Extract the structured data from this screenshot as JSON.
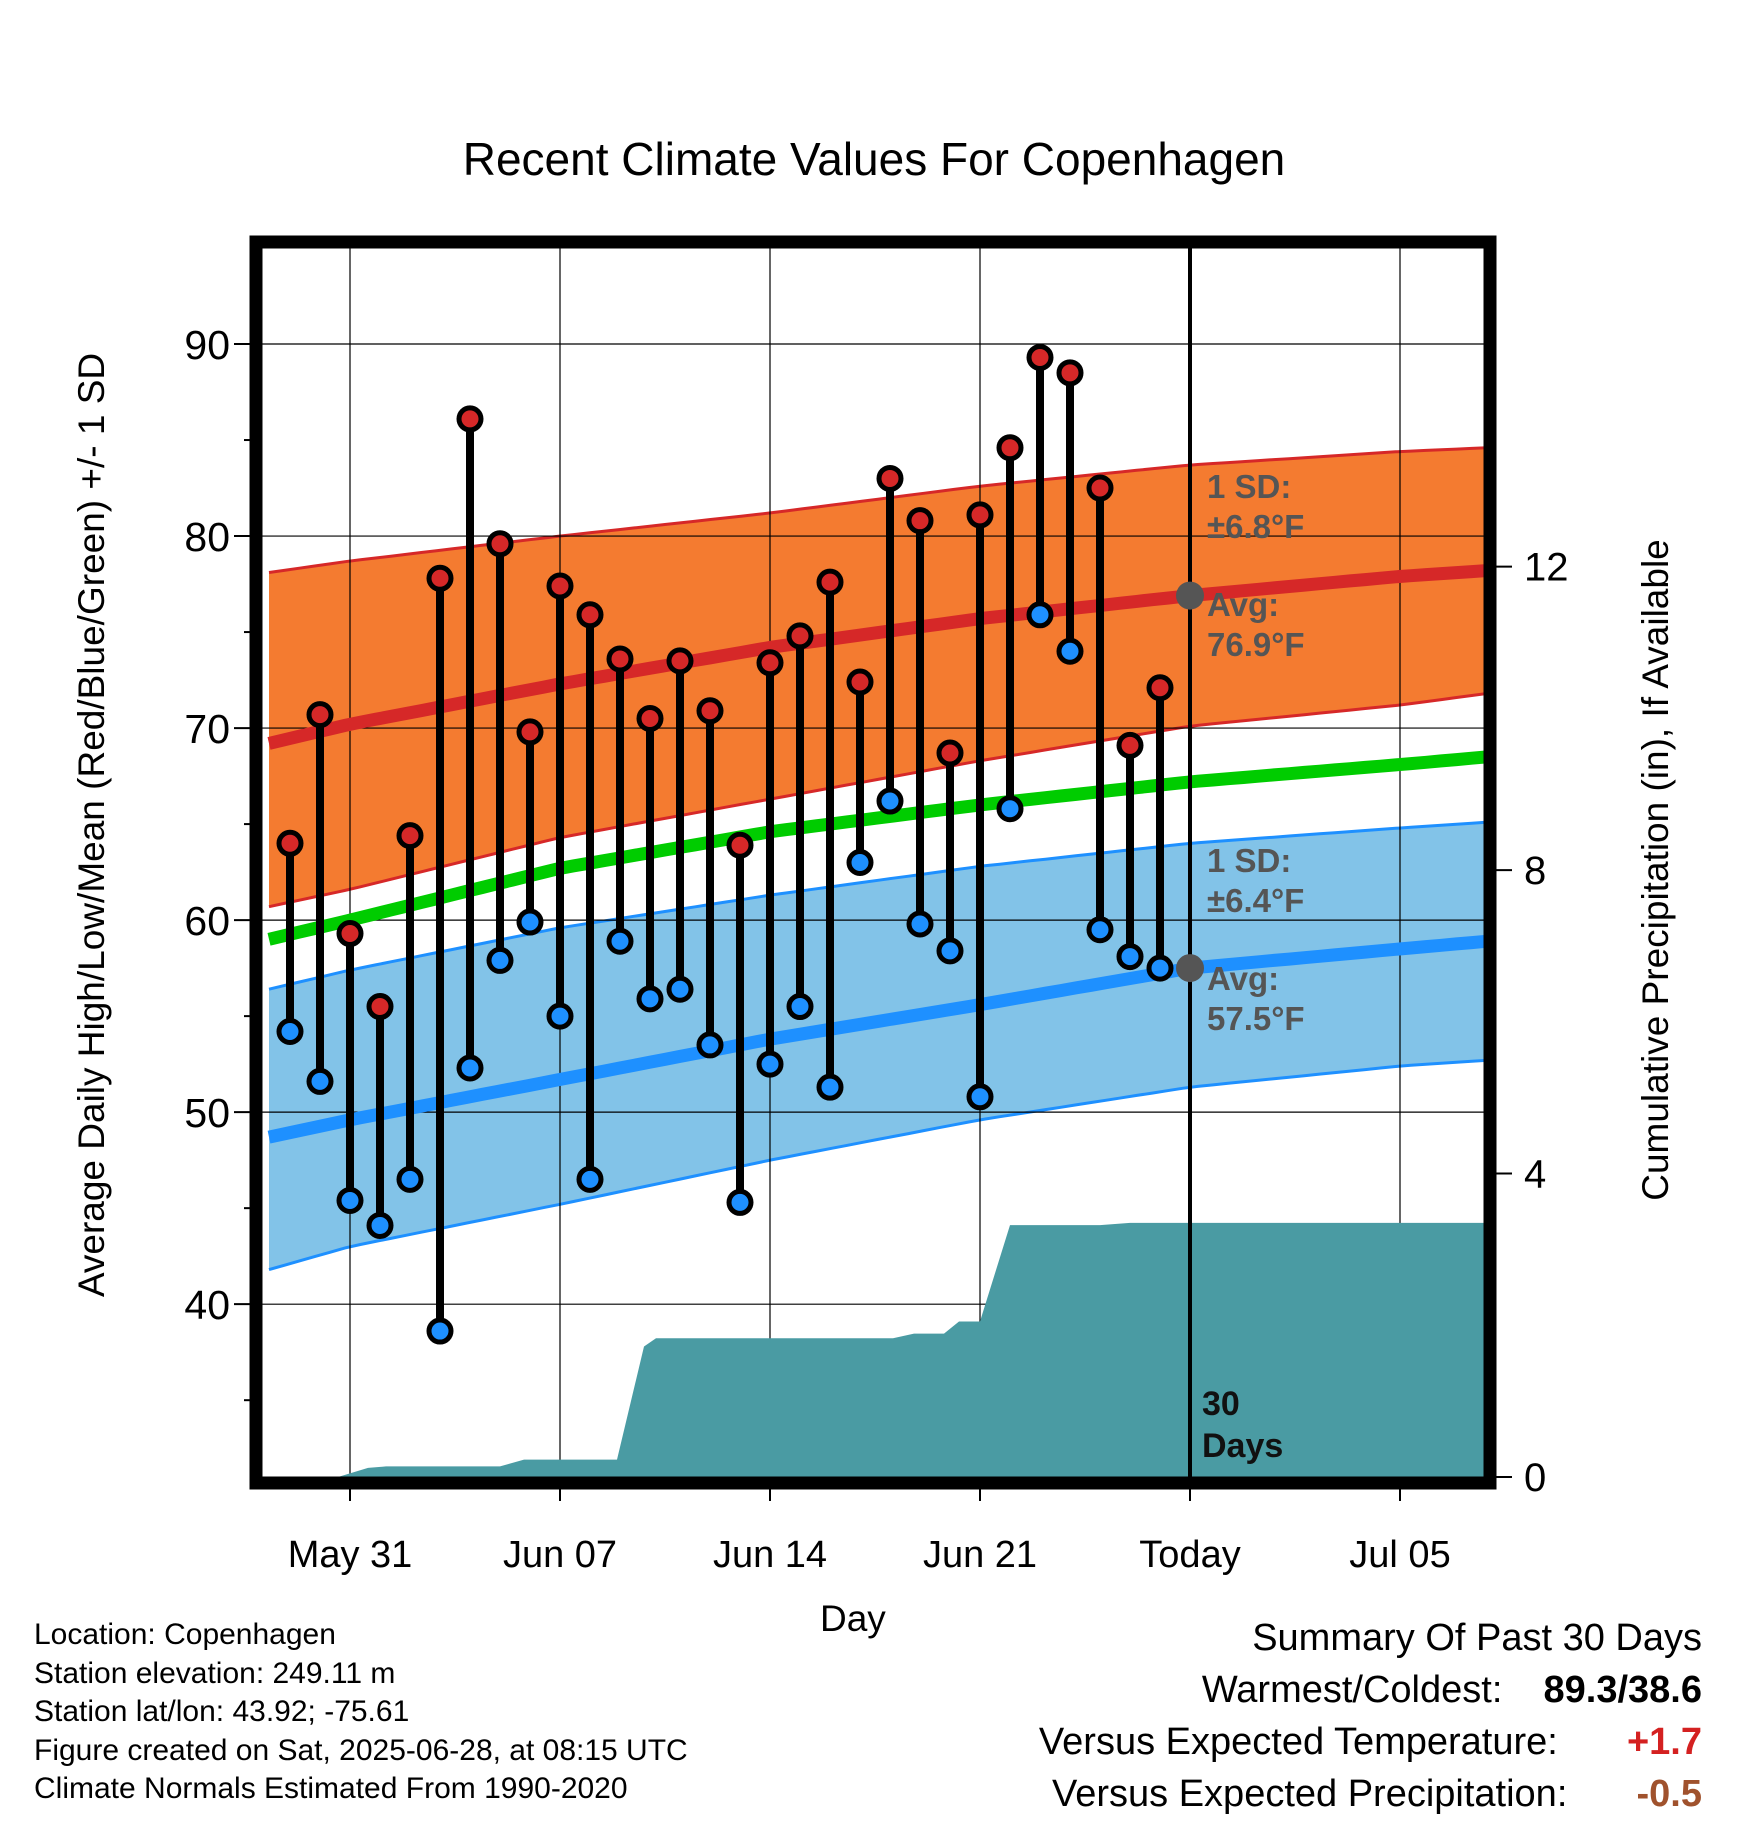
{
  "title": "Recent Climate Values For Copenhagen",
  "colors": {
    "high_band": "#f47b30",
    "high_band_edge": "#d62828",
    "high_avg_line": "#d62828",
    "low_band": "#82c3e8",
    "low_band_edge": "#1e90ff",
    "low_avg_line": "#1e90ff",
    "mean_line": "#00cc00",
    "precip_fill": "#4a9ba3",
    "high_marker": "#d62828",
    "low_marker": "#1e90ff",
    "today_marker": "#555555",
    "annotation_text": "#555555"
  },
  "chart_data": {
    "type": "line",
    "title": "Recent Climate Values For Copenhagen",
    "xlabel": "Day",
    "ylabel": "Average Daily High/Low/Mean (Red/Blue/Green) +/- 1 SD",
    "y2label": "Cumulative Precipitation (in), If Available",
    "ylim": [
      31,
      95
    ],
    "y2lim": [
      0,
      16.2
    ],
    "xlim": [
      -3.2,
      37.9
    ],
    "x_ticks": [
      {
        "x": 0,
        "label": "May 31"
      },
      {
        "x": 7,
        "label": "Jun 07"
      },
      {
        "x": 14,
        "label": "Jun 14"
      },
      {
        "x": 21,
        "label": "Jun 21"
      },
      {
        "x": 28,
        "label": "Today"
      },
      {
        "x": 35,
        "label": "Jul 05"
      }
    ],
    "y_ticks": [
      40,
      50,
      60,
      70,
      80,
      90
    ],
    "y2_ticks": [
      0,
      4,
      8,
      12
    ],
    "grid": true,
    "today_x": 28,
    "normals": {
      "x": [
        -2.7,
        0,
        7,
        14,
        21,
        28,
        35,
        37.9
      ],
      "high_avg": [
        69.2,
        70.2,
        72.3,
        74.2,
        75.7,
        76.9,
        77.9,
        78.2
      ],
      "high_sd_upper": [
        78.1,
        78.7,
        80.0,
        81.2,
        82.6,
        83.7,
        84.4,
        84.6
      ],
      "high_sd_lower": [
        60.7,
        61.6,
        64.3,
        66.3,
        68.3,
        70.1,
        71.2,
        71.8
      ],
      "mean": [
        59.0,
        60.0,
        62.7,
        64.6,
        66.0,
        67.2,
        68.1,
        68.5
      ],
      "low_avg": [
        48.7,
        49.6,
        51.7,
        53.8,
        55.6,
        57.5,
        58.5,
        58.9
      ],
      "low_sd_upper": [
        56.4,
        57.4,
        59.6,
        61.3,
        62.8,
        64.0,
        64.8,
        65.1
      ],
      "low_sd_lower": [
        41.8,
        43.0,
        45.2,
        47.5,
        49.6,
        51.3,
        52.4,
        52.7
      ]
    },
    "daily": {
      "x": [
        -2,
        -1,
        0,
        1,
        2,
        3,
        4,
        5,
        6,
        7,
        8,
        9,
        10,
        11,
        12,
        13,
        14,
        15,
        16,
        17,
        18,
        19,
        20,
        21,
        22,
        23,
        24,
        25,
        26,
        27
      ],
      "high": [
        64.0,
        70.7,
        59.3,
        55.5,
        64.4,
        77.8,
        86.1,
        79.6,
        69.8,
        77.4,
        75.9,
        73.6,
        70.5,
        73.5,
        70.9,
        63.9,
        73.4,
        74.8,
        77.6,
        72.4,
        83.0,
        80.8,
        68.7,
        81.1,
        84.6,
        89.3,
        88.5,
        82.5,
        69.1,
        72.1
      ],
      "low": [
        54.2,
        51.6,
        45.4,
        44.1,
        46.5,
        38.6,
        52.3,
        57.9,
        59.9,
        55.0,
        46.5,
        58.9,
        55.9,
        56.4,
        53.5,
        45.3,
        52.5,
        55.5,
        51.3,
        63.0,
        66.2,
        59.8,
        58.4,
        50.8,
        65.8,
        75.9,
        74.0,
        59.5,
        58.1,
        57.5
      ]
    },
    "precip": {
      "x": [
        -2.7,
        -0.4,
        0.6,
        1.2,
        5.0,
        5.8,
        8.9,
        9.8,
        10.2,
        18.1,
        18.8,
        19.8,
        20.3,
        21.0,
        22.0,
        25.0,
        26.0,
        28.0,
        37.9
      ],
      "values": [
        0,
        0,
        0.12,
        0.14,
        0.14,
        0.23,
        0.23,
        1.72,
        1.83,
        1.83,
        1.89,
        1.89,
        2.05,
        2.05,
        3.32,
        3.32,
        3.35,
        3.35,
        3.35
      ]
    },
    "annotations": {
      "high_sd": {
        "line1": "1 SD:",
        "line2": "±6.8°F"
      },
      "high_avg": {
        "line1": "Avg:",
        "line2": "76.9°F"
      },
      "low_sd": {
        "line1": "1 SD:",
        "line2": "±6.4°F"
      },
      "low_avg": {
        "line1": "Avg:",
        "line2": "57.5°F"
      },
      "days": {
        "line1": "30",
        "line2": "Days"
      }
    }
  },
  "info": {
    "location": "Location: Copenhagen",
    "elevation": "Station elevation: 249.11 m",
    "latlon": "Station lat/lon: 43.92; -75.61",
    "created": "Figure created on Sat, 2025-06-28, at 08:15 UTC",
    "normals": "Climate Normals Estimated From 1990-2020"
  },
  "summary": {
    "heading": "Summary Of Past 30 Days",
    "warm_label": "Warmest/Coldest:",
    "warm_value": "89.3/38.6",
    "temp_label": "Versus Expected Temperature:",
    "temp_value": "+1.7",
    "precip_label": "Versus Expected Precipitation:",
    "precip_value": "-0.5"
  }
}
